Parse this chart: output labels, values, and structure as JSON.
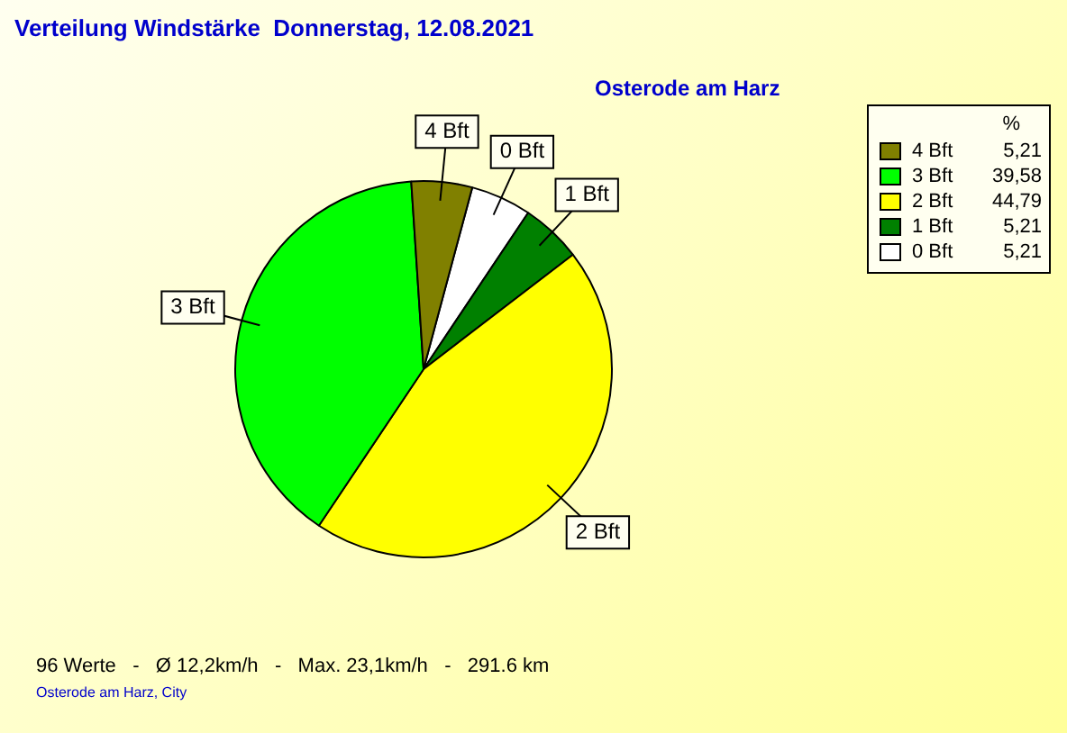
{
  "chart_data": {
    "type": "pie",
    "title": "Verteilung Windstärke  Donnerstag, 12.08.2021",
    "subtitle": "Osterode am Harz",
    "legend_title": "%",
    "legend": "top right",
    "categories": [
      "4 Bft",
      "3 Bft",
      "2 Bft",
      "1 Bft",
      "0 Bft"
    ],
    "values": [
      5.21,
      39.58,
      44.79,
      5.21,
      5.21
    ],
    "value_labels": [
      "5,21",
      "39,58",
      "44,79",
      "5,21",
      "5,21"
    ],
    "colors": [
      "#808000",
      "#00ff00",
      "#ffff00",
      "#008000",
      "#ffffff"
    ],
    "annotations": [
      "96 Werte   -   Ø 12,2km/h   -   Max. 23,1km/h   -   291.6 km",
      "Osterode am Harz, City"
    ]
  }
}
